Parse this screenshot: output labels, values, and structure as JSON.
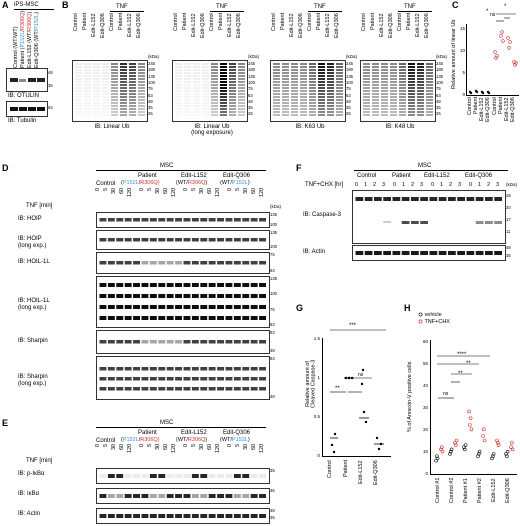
{
  "panels": {
    "A": {
      "letter": "A",
      "header": "iPS-MSC",
      "lanes": [
        {
          "prefix": "Control (WT/WT)",
          "parts": []
        },
        {
          "prefix": "Patient (",
          "parts": [
            "P152L",
            "/",
            "R306Q",
            ")"
          ]
        },
        {
          "prefix": "Edit-L152 (WT/",
          "parts": [
            "R306Q",
            ")"
          ]
        },
        {
          "prefix": "Edit-Q306 (WT/",
          "parts": [
            "P152L",
            ")"
          ]
        }
      ],
      "blots": [
        {
          "label": "IB: OTULIN",
          "mw": [
            "48",
            "35"
          ]
        },
        {
          "label": "IB: Tubulin",
          "mw": [
            "63"
          ]
        }
      ]
    },
    "B": {
      "letter": "B",
      "tnf_label": "TNF",
      "lanes": [
        "Control",
        "Patient",
        "Edit-L152",
        "Edit-Q306",
        "Control",
        "Patient",
        "Edit-L152",
        "Edit-Q306"
      ],
      "kda": "(kDa)",
      "mw": [
        "245",
        "180",
        "135",
        "100",
        "75",
        "63",
        "48",
        "35",
        "25"
      ],
      "blots": [
        "IB: Linear Ub",
        "IB: Linear Ub\n(long exposure)",
        "IB: K63 Ub",
        "IB: K48 Ub"
      ]
    },
    "C": {
      "letter": "C",
      "ylabel": "Relative amount of linear Ub",
      "yticks": [
        "0",
        "5",
        "10",
        "15"
      ],
      "categories": [
        "Control",
        "Patient",
        "Edit-L152",
        "Edit-Q306",
        "Control",
        "Patient",
        "Edit-L152",
        "Edit-Q306"
      ],
      "tnf_label": "TNF",
      "sig": [
        "*",
        "ns",
        "*"
      ]
    },
    "D": {
      "letter": "D",
      "header": "MSC",
      "groups": [
        "Control",
        "Patient",
        "Edit-L152",
        "Edit-Q306"
      ],
      "group_sub": [
        {
          "a": "",
          "b": "",
          "c": "",
          "d": ""
        },
        {
          "a": "(",
          "b": "P152L",
          "c": "/",
          "d": "R306Q)"
        },
        {
          "a": "(WT/",
          "b": "R306Q",
          "c": ")",
          "d": ""
        },
        {
          "a": "(WT/",
          "b": "P152L",
          "c": ")",
          "d": ""
        }
      ],
      "tnf_label": "TNF [min]",
      "timepoints": [
        "0",
        "5",
        "30",
        "60",
        "120"
      ],
      "kda": "(kDa)",
      "blots": [
        {
          "label": "IB: HOIP",
          "mw": [
            "135",
            "100"
          ]
        },
        {
          "label": "IB: HOIP\n(long exp.)",
          "mw": [
            "135",
            "100"
          ]
        },
        {
          "label": "IB: HOIL-1L",
          "mw": [
            "75",
            "63"
          ]
        },
        {
          "label": "IB: HOIL-1L\n(long exp.)",
          "mw": [
            "135",
            "100",
            "75",
            "63"
          ]
        },
        {
          "label": "IB: Sharpin",
          "mw": [
            "63",
            "48"
          ]
        },
        {
          "label": "IB: Sharpin\n(long exp.)",
          "mw": [
            "63",
            "48"
          ]
        }
      ]
    },
    "E": {
      "letter": "E",
      "header": "MSC",
      "tnf_label": "TNF [min]",
      "blots": [
        {
          "label": "IB: p-IκBα",
          "mw": [
            "35"
          ]
        },
        {
          "label": "IB: IκBα",
          "mw": [
            "35"
          ]
        },
        {
          "label": "IB: Actin",
          "mw": [
            "48",
            "35"
          ]
        }
      ]
    },
    "F": {
      "letter": "F",
      "header": "MSC",
      "groups": [
        "Control",
        "Patient",
        "Edit-L152",
        "Edit-Q306"
      ],
      "treat_label": "TNF+CHX [hr]",
      "timepoints": [
        "0",
        "1",
        "2",
        "3"
      ],
      "kda": "(kDa)",
      "blots": [
        {
          "label": "IB: Caspase-3",
          "mw": [
            "25",
            "20",
            "17",
            "11"
          ]
        },
        {
          "label": "IB: Actin",
          "mw": [
            "48",
            "35"
          ]
        }
      ]
    },
    "G": {
      "letter": "G",
      "ylabel": "Relative amount of\nCleaved Caspase-3",
      "yticks": [
        "0",
        "0.5",
        "1",
        "1.5"
      ],
      "categories": [
        "Control",
        "Patient",
        "Edit-L152",
        "Edit-Q306"
      ],
      "sig": [
        "**",
        "ns",
        "***"
      ]
    },
    "H": {
      "letter": "H",
      "legend": [
        "vehicle",
        "TNF+CHX"
      ],
      "ylabel": "% of Annexin-V positive cells",
      "yticks": [
        "0",
        "10",
        "20",
        "30",
        "40",
        "50",
        "60"
      ],
      "categories": [
        "Control #1",
        "Control #2",
        "Patient #1",
        "Patient #2",
        "Edit-L152",
        "Edit-Q306"
      ],
      "sig": [
        "ns",
        "****",
        "**",
        "**"
      ]
    }
  },
  "colors": {
    "red": "#d0342c",
    "blue": "#3b8fd6",
    "black": "#000000"
  }
}
